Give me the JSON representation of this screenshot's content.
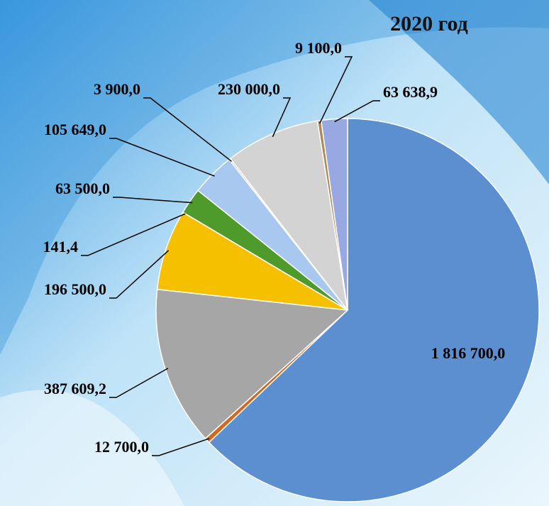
{
  "chart_data": {
    "type": "pie",
    "title": "2020 год",
    "values": [
      1816700,
      12700,
      387609.2,
      196500,
      141.4,
      63500,
      105649,
      3900,
      230000,
      9100,
      63638.9
    ],
    "value_labels": [
      "1 816 700,0",
      "12 700,0",
      "387 609,2",
      "196 500,0",
      "141,4",
      "63 500,0",
      "105 649,0",
      "3 900,0",
      "230 000,0",
      "9 100,0",
      "63 638,9"
    ],
    "colors": [
      "#5b8fd0",
      "#d2691e",
      "#a6a6a6",
      "#f5c000",
      "#7a5c2e",
      "#4e9a2a",
      "#a9c8f0",
      "#c0c0c0",
      "#d3d3d3",
      "#b08850",
      "#98a8e0"
    ]
  }
}
